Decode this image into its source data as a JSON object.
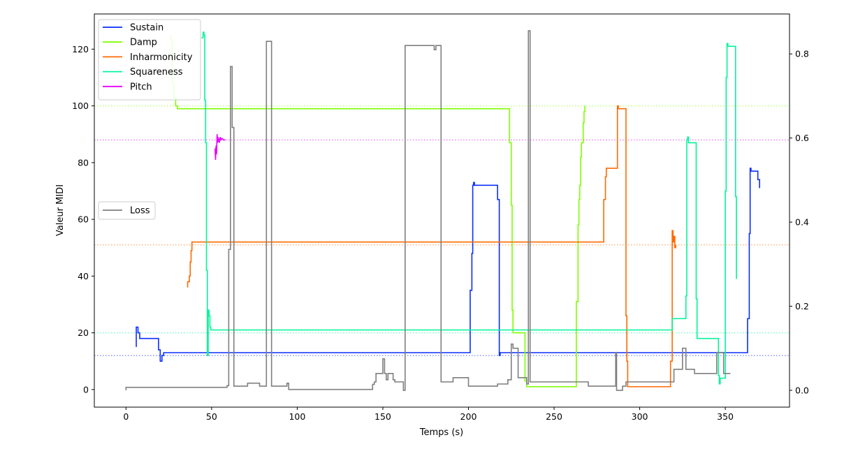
{
  "chart_data": {
    "type": "line",
    "title": "",
    "xlabel": "Temps (s)",
    "ylabel": "Valeur MIDI",
    "y2label": "",
    "xlim": [
      -18.5,
      387.5
    ],
    "ylim": [
      -6.2,
      132.4
    ],
    "y2lim": [
      -0.04,
      0.895
    ],
    "xticks": [
      0,
      50,
      100,
      150,
      200,
      250,
      300,
      350
    ],
    "yticks": [
      0,
      20,
      40,
      60,
      80,
      100,
      120
    ],
    "y2ticks": [
      0.0,
      0.2,
      0.4,
      0.6,
      0.8
    ],
    "y2tick_labels": [
      "0.0",
      "0.2",
      "0.4",
      "0.6",
      "0.8"
    ],
    "grid": false,
    "legend_placement": "upper-left",
    "legend2_placement": "center-left",
    "reference_lines": [
      {
        "series": "Sustain",
        "y": 12,
        "color": "#0a2eff",
        "style": "dotted"
      },
      {
        "series": "Damp",
        "y": 100,
        "color": "#7fff00",
        "style": "dotted"
      },
      {
        "series": "Inharmonicity",
        "y": 51,
        "color": "#ff6a00",
        "style": "dotted"
      },
      {
        "series": "Squareness",
        "y": 20,
        "color": "#00f59a",
        "style": "dotted"
      },
      {
        "series": "Pitch",
        "y": 88,
        "color": "#e600ff",
        "style": "dotted"
      }
    ],
    "series": [
      {
        "name": "Sustain",
        "color": "#0a2eff",
        "axis": "left",
        "points": [
          [
            6,
            15
          ],
          [
            6,
            22
          ],
          [
            7,
            22
          ],
          [
            7,
            20
          ],
          [
            8,
            20
          ],
          [
            8,
            18
          ],
          [
            19,
            18
          ],
          [
            19,
            14
          ],
          [
            20,
            14
          ],
          [
            20,
            10
          ],
          [
            21,
            10
          ],
          [
            21,
            12
          ],
          [
            22,
            12
          ],
          [
            22,
            13
          ],
          [
            201,
            13
          ],
          [
            201,
            35
          ],
          [
            202,
            35
          ],
          [
            202,
            48
          ],
          [
            202.5,
            48
          ],
          [
            202.5,
            72
          ],
          [
            203,
            72
          ],
          [
            203,
            73
          ],
          [
            203.5,
            73
          ],
          [
            203.5,
            72
          ],
          [
            217,
            72
          ],
          [
            217,
            67
          ],
          [
            218,
            67
          ],
          [
            218,
            12
          ],
          [
            218.5,
            12
          ],
          [
            218.5,
            13
          ],
          [
            363,
            13
          ],
          [
            363,
            25
          ],
          [
            364,
            25
          ],
          [
            364,
            55
          ],
          [
            364.5,
            55
          ],
          [
            364.5,
            78
          ],
          [
            365,
            78
          ],
          [
            365,
            77
          ],
          [
            369,
            77
          ],
          [
            369,
            74
          ],
          [
            370,
            74
          ],
          [
            370,
            71
          ]
        ]
      },
      {
        "name": "Damp",
        "color": "#7fff00",
        "axis": "left",
        "points": [
          [
            26,
            125
          ],
          [
            27,
            122
          ],
          [
            27,
            109
          ],
          [
            28,
            107
          ],
          [
            28,
            103
          ],
          [
            29,
            103
          ],
          [
            29,
            100
          ],
          [
            30,
            100
          ],
          [
            30,
            99
          ],
          [
            224,
            99
          ],
          [
            224,
            87
          ],
          [
            225,
            87
          ],
          [
            225,
            65
          ],
          [
            225.5,
            65
          ],
          [
            225.5,
            28
          ],
          [
            226,
            28
          ],
          [
            226,
            20
          ],
          [
            233,
            20
          ],
          [
            233,
            3
          ],
          [
            234,
            3
          ],
          [
            234,
            1
          ],
          [
            263,
            1
          ],
          [
            263,
            31
          ],
          [
            264,
            31
          ],
          [
            264,
            58
          ],
          [
            264.5,
            58
          ],
          [
            264.5,
            67
          ],
          [
            265,
            67
          ],
          [
            265,
            72
          ],
          [
            265.5,
            72
          ],
          [
            265.5,
            82
          ],
          [
            266,
            82
          ],
          [
            266,
            87
          ],
          [
            267,
            87
          ],
          [
            267,
            94
          ],
          [
            267.5,
            94
          ],
          [
            267.5,
            98
          ],
          [
            268,
            98
          ],
          [
            268,
            100
          ]
        ]
      },
      {
        "name": "Inharmonicity",
        "color": "#ff6a00",
        "axis": "left",
        "points": [
          [
            36,
            36
          ],
          [
            36,
            38
          ],
          [
            37,
            38
          ],
          [
            37,
            40
          ],
          [
            37.5,
            40
          ],
          [
            37.5,
            45
          ],
          [
            38,
            45
          ],
          [
            38,
            49
          ],
          [
            38.5,
            49
          ],
          [
            38.5,
            52
          ],
          [
            279,
            52
          ],
          [
            279,
            67
          ],
          [
            280,
            67
          ],
          [
            280,
            75
          ],
          [
            280.5,
            75
          ],
          [
            280.5,
            78
          ],
          [
            287,
            78
          ],
          [
            287,
            100
          ],
          [
            287.5,
            100
          ],
          [
            287.5,
            99
          ],
          [
            292,
            99
          ],
          [
            292,
            26
          ],
          [
            292.5,
            26
          ],
          [
            292.5,
            10
          ],
          [
            293,
            10
          ],
          [
            293,
            1
          ],
          [
            318,
            1
          ],
          [
            318,
            10
          ],
          [
            319,
            10
          ],
          [
            319,
            56
          ],
          [
            319.5,
            56
          ],
          [
            319.5,
            52
          ],
          [
            320,
            52
          ],
          [
            320,
            54
          ],
          [
            320.5,
            54
          ],
          [
            320.5,
            50
          ],
          [
            321,
            50
          ],
          [
            321,
            51
          ]
        ]
      },
      {
        "name": "Squareness",
        "color": "#00f59a",
        "axis": "left",
        "points": [
          [
            44,
            124
          ],
          [
            45,
            124
          ],
          [
            45,
            126
          ],
          [
            45.5,
            126
          ],
          [
            45.5,
            125
          ],
          [
            46,
            125
          ],
          [
            46,
            102
          ],
          [
            46.5,
            102
          ],
          [
            46.5,
            87
          ],
          [
            47,
            87
          ],
          [
            47,
            42
          ],
          [
            47.5,
            42
          ],
          [
            47.5,
            12
          ],
          [
            48,
            12
          ],
          [
            48,
            28
          ],
          [
            48.5,
            28
          ],
          [
            48.5,
            26
          ],
          [
            49,
            26
          ],
          [
            49,
            22
          ],
          [
            49.5,
            22
          ],
          [
            49.5,
            21
          ],
          [
            319,
            21
          ],
          [
            319,
            25
          ],
          [
            327,
            25
          ],
          [
            327,
            33
          ],
          [
            327.5,
            33
          ],
          [
            327.5,
            88
          ],
          [
            328,
            88
          ],
          [
            328,
            89
          ],
          [
            328.5,
            89
          ],
          [
            328.5,
            87
          ],
          [
            333,
            87
          ],
          [
            333,
            32
          ],
          [
            333.5,
            32
          ],
          [
            333.5,
            18
          ],
          [
            346,
            18
          ],
          [
            346,
            5
          ],
          [
            346.5,
            5
          ],
          [
            346.5,
            2
          ],
          [
            347,
            2
          ],
          [
            347,
            4
          ],
          [
            350,
            4
          ],
          [
            350,
            70
          ],
          [
            350.5,
            70
          ],
          [
            350.5,
            110
          ],
          [
            351,
            110
          ],
          [
            351,
            122
          ],
          [
            351.5,
            122
          ],
          [
            351.5,
            121
          ],
          [
            356,
            121
          ],
          [
            356,
            68
          ],
          [
            356.5,
            68
          ],
          [
            356.5,
            39
          ]
        ]
      },
      {
        "name": "Pitch",
        "color": "#e600ff",
        "axis": "left",
        "points": [
          [
            52,
            85
          ],
          [
            52.3,
            81
          ],
          [
            52.6,
            86
          ],
          [
            52.9,
            83
          ],
          [
            53.2,
            90
          ],
          [
            53.5,
            87
          ],
          [
            53.8,
            89
          ],
          [
            54.1,
            88
          ],
          [
            54.5,
            87
          ],
          [
            55,
            89
          ],
          [
            55.5,
            88
          ],
          [
            56,
            88.5
          ],
          [
            57,
            88
          ],
          [
            58,
            88
          ]
        ]
      },
      {
        "name": "Loss",
        "color": "#7f7f7f",
        "axis": "right",
        "points": [
          [
            0,
            0
          ],
          [
            0,
            0.007
          ],
          [
            59,
            0.007
          ],
          [
            59,
            0.011
          ],
          [
            60,
            0.011
          ],
          [
            60,
            0.335
          ],
          [
            61,
            0.335
          ],
          [
            61,
            0.77
          ],
          [
            62,
            0.77
          ],
          [
            62,
            0.625
          ],
          [
            63,
            0.625
          ],
          [
            63,
            0.01
          ],
          [
            71,
            0.01
          ],
          [
            71,
            0.017
          ],
          [
            78,
            0.017
          ],
          [
            78,
            0.01
          ],
          [
            82,
            0.01
          ],
          [
            82,
            0.83
          ],
          [
            85,
            0.83
          ],
          [
            85,
            0.01
          ],
          [
            94,
            0.01
          ],
          [
            94,
            0.017
          ],
          [
            95,
            0.017
          ],
          [
            95,
            0.002
          ],
          [
            144,
            0.002
          ],
          [
            144,
            0.014
          ],
          [
            145,
            0.014
          ],
          [
            145,
            0.02
          ],
          [
            146,
            0.02
          ],
          [
            146,
            0.04
          ],
          [
            150,
            0.04
          ],
          [
            150,
            0.075
          ],
          [
            151,
            0.075
          ],
          [
            151,
            0.04
          ],
          [
            152,
            0.04
          ],
          [
            152,
            0.025
          ],
          [
            153,
            0.025
          ],
          [
            153,
            0.04
          ],
          [
            156,
            0.04
          ],
          [
            156,
            0.025
          ],
          [
            157,
            0.025
          ],
          [
            157,
            0.02
          ],
          [
            162,
            0.02
          ],
          [
            162,
            0.0
          ],
          [
            163,
            0.0
          ],
          [
            163,
            0.82
          ],
          [
            180,
            0.82
          ],
          [
            180,
            0.81
          ],
          [
            181,
            0.81
          ],
          [
            181,
            0.82
          ],
          [
            184,
            0.82
          ],
          [
            184,
            0.02
          ],
          [
            191,
            0.02
          ],
          [
            191,
            0.03
          ],
          [
            200,
            0.03
          ],
          [
            200,
            0.01
          ],
          [
            217,
            0.01
          ],
          [
            217,
            0.015
          ],
          [
            223,
            0.015
          ],
          [
            223,
            0.025
          ],
          [
            225,
            0.025
          ],
          [
            225,
            0.11
          ],
          [
            226,
            0.11
          ],
          [
            226,
            0.1
          ],
          [
            229,
            0.1
          ],
          [
            229,
            0.03
          ],
          [
            234,
            0.03
          ],
          [
            234,
            0.015
          ],
          [
            235,
            0.015
          ],
          [
            235,
            0.855
          ],
          [
            236,
            0.855
          ],
          [
            236,
            0.02
          ],
          [
            270,
            0.02
          ],
          [
            270,
            0.01
          ],
          [
            286,
            0.01
          ],
          [
            286,
            0.09
          ],
          [
            286.5,
            0.09
          ],
          [
            286.5,
            0.0
          ],
          [
            290,
            0.0
          ],
          [
            290,
            0.01
          ],
          [
            292,
            0.01
          ],
          [
            292,
            0.02
          ],
          [
            320,
            0.02
          ],
          [
            320,
            0.05
          ],
          [
            325,
            0.05
          ],
          [
            325,
            0.1
          ],
          [
            327,
            0.1
          ],
          [
            327,
            0.05
          ],
          [
            332,
            0.05
          ],
          [
            332,
            0.04
          ],
          [
            345,
            0.04
          ],
          [
            345,
            0.09
          ],
          [
            349,
            0.09
          ],
          [
            349,
            0.04
          ],
          [
            353,
            0.04
          ]
        ]
      }
    ]
  }
}
